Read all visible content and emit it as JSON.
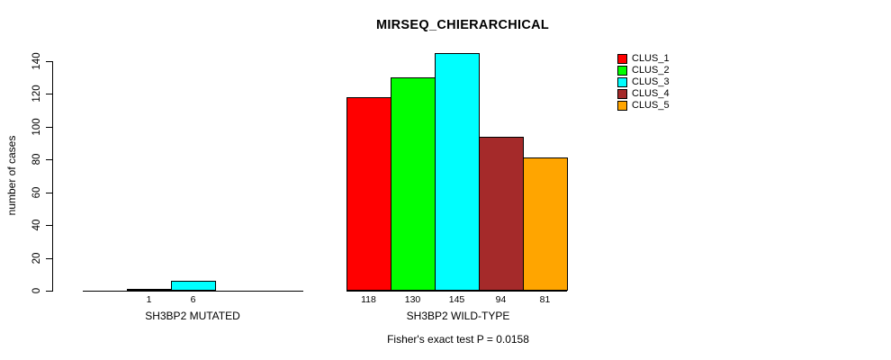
{
  "chart_data": {
    "type": "bar",
    "title": "MIRSEQ_CHIERARCHICAL",
    "ylabel": "number of cases",
    "ylim": [
      0,
      140
    ],
    "yticks": [
      0,
      20,
      40,
      60,
      80,
      100,
      120,
      140
    ],
    "grid": false,
    "legend_position": "top-right",
    "legend": [
      "CLUS_1",
      "CLUS_2",
      "CLUS_3",
      "CLUS_4",
      "CLUS_5"
    ],
    "series_colors": [
      "#FF0000",
      "#00FF00",
      "#00FFFF",
      "#A52A2A",
      "#FFA500"
    ],
    "groups": [
      {
        "label": "SH3BP2 MUTATED",
        "values": [
          0,
          1,
          6,
          0,
          0
        ],
        "bar_labels": [
          "",
          "1",
          "6",
          "",
          ""
        ]
      },
      {
        "label": "SH3BP2 WILD-TYPE",
        "values": [
          118,
          130,
          145,
          94,
          81
        ],
        "bar_labels": [
          "118",
          "130",
          "145",
          "94",
          "81"
        ]
      }
    ],
    "footer": "Fisher's exact test P = 0.0158",
    "background_color": "#FFFFFF",
    "text_color": "#000000"
  }
}
